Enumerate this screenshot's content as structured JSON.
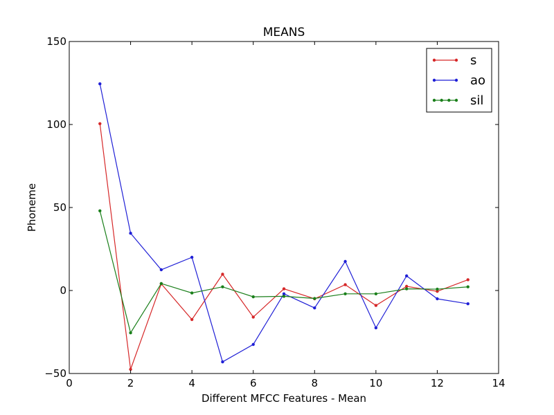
{
  "chart_data": {
    "type": "line",
    "title": "MEANS",
    "xlabel": "Different MFCC Features - Mean",
    "ylabel": "Phoneme",
    "xlim": [
      0,
      14
    ],
    "ylim": [
      -50,
      150
    ],
    "xticks": [
      0,
      2,
      4,
      6,
      8,
      10,
      12,
      14
    ],
    "yticks": [
      -50,
      0,
      50,
      100,
      150
    ],
    "grid": false,
    "legend_position": "top-right",
    "x": [
      1,
      2,
      3,
      4,
      5,
      6,
      7,
      8,
      9,
      10,
      11,
      12,
      13
    ],
    "series": [
      {
        "name": "s",
        "color": "#d62728",
        "values": [
          100.5,
          -47.5,
          4.0,
          -17.5,
          9.8,
          -16.0,
          1.0,
          -5.0,
          3.5,
          -9.0,
          2.5,
          -0.5,
          6.5
        ]
      },
      {
        "name": "ao",
        "color": "#1f1fd6",
        "values": [
          124.5,
          34.5,
          12.5,
          20.0,
          -43.0,
          -32.5,
          -2.0,
          -10.5,
          17.5,
          -22.5,
          8.8,
          -5.0,
          -8.0
        ]
      },
      {
        "name": "sil",
        "color": "#1a7f1a",
        "values": [
          48.0,
          -25.5,
          4.2,
          -1.5,
          2.2,
          -3.8,
          -3.5,
          -4.8,
          -2.0,
          -2.0,
          1.0,
          0.8,
          2.2
        ]
      }
    ]
  }
}
